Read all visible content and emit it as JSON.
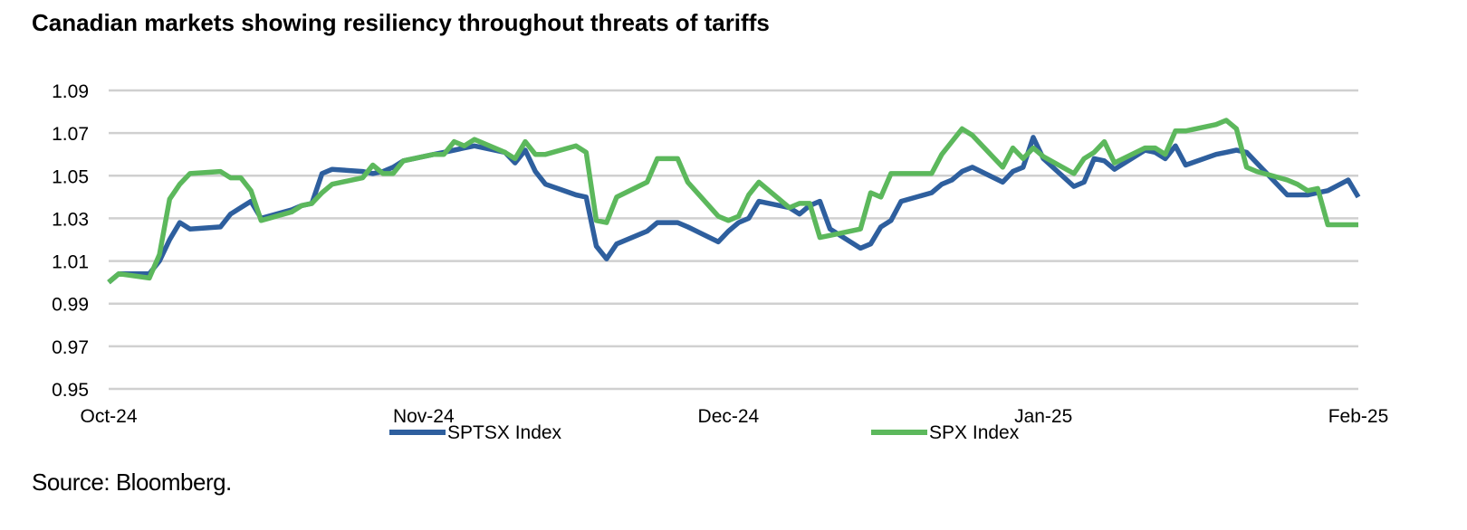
{
  "chart_data": {
    "type": "line",
    "title": "Canadian markets showing resiliency throughout threats of tariffs",
    "xlabel": "",
    "ylabel": "",
    "ylim": [
      0.95,
      1.09
    ],
    "yticks": [
      "1.09",
      "1.07",
      "1.05",
      "1.03",
      "1.01",
      "0.99",
      "0.97",
      "0.95"
    ],
    "ytick_values": [
      1.09,
      1.07,
      1.05,
      1.03,
      1.01,
      0.99,
      0.97,
      0.95
    ],
    "xlim": [
      0,
      123
    ],
    "xtick_labels": [
      "Oct-24",
      "Nov-24",
      "Dec-24",
      "Jan-25",
      "Feb-25"
    ],
    "xtick_values": [
      0,
      31,
      61,
      92,
      123
    ],
    "grid": true,
    "legend_position": "bottom",
    "x": [
      0,
      1,
      4,
      5,
      6,
      7,
      8,
      11,
      12,
      13,
      14,
      15,
      18,
      19,
      20,
      21,
      22,
      25,
      26,
      27,
      28,
      29,
      32,
      33,
      34,
      35,
      36,
      39,
      40,
      41,
      42,
      43,
      46,
      47,
      48,
      49,
      50,
      53,
      54,
      55,
      56,
      57,
      60,
      61,
      62,
      63,
      64,
      67,
      68,
      69,
      70,
      71,
      74,
      75,
      76,
      77,
      78,
      81,
      82,
      83,
      84,
      85,
      88,
      89,
      90,
      91,
      92,
      95,
      96,
      97,
      98,
      99,
      102,
      103,
      104,
      105,
      106,
      109,
      110,
      111,
      112,
      113,
      116,
      117,
      118,
      119,
      120,
      122,
      123
    ],
    "series": [
      {
        "name": "SPTSX Index",
        "color": "#2e5f9e",
        "values": [
          1.0,
          1.004,
          1.004,
          1.01,
          1.02,
          1.028,
          1.025,
          1.026,
          1.032,
          1.035,
          1.038,
          1.03,
          1.034,
          1.036,
          1.037,
          1.051,
          1.053,
          1.052,
          1.051,
          1.052,
          1.054,
          1.057,
          1.06,
          1.061,
          1.062,
          1.063,
          1.064,
          1.061,
          1.056,
          1.062,
          1.052,
          1.046,
          1.041,
          1.04,
          1.017,
          1.011,
          1.018,
          1.024,
          1.028,
          1.028,
          1.028,
          1.026,
          1.019,
          1.024,
          1.028,
          1.03,
          1.038,
          1.035,
          1.032,
          1.036,
          1.038,
          1.025,
          1.016,
          1.018,
          1.026,
          1.029,
          1.038,
          1.042,
          1.046,
          1.048,
          1.052,
          1.054,
          1.047,
          1.052,
          1.054,
          1.068,
          1.058,
          1.045,
          1.047,
          1.058,
          1.057,
          1.053,
          1.062,
          1.061,
          1.058,
          1.064,
          1.055,
          1.06,
          1.061,
          1.062,
          1.061,
          1.056,
          1.041,
          1.041,
          1.041,
          1.042,
          1.043,
          1.048,
          1.04
        ]
      },
      {
        "name": "SPX Index",
        "color": "#5cb85c",
        "values": [
          1.0,
          1.004,
          1.002,
          1.013,
          1.039,
          1.046,
          1.051,
          1.052,
          1.049,
          1.049,
          1.043,
          1.029,
          1.033,
          1.036,
          1.037,
          1.042,
          1.046,
          1.049,
          1.055,
          1.051,
          1.051,
          1.057,
          1.06,
          1.06,
          1.066,
          1.064,
          1.067,
          1.061,
          1.058,
          1.066,
          1.06,
          1.06,
          1.064,
          1.061,
          1.029,
          1.028,
          1.04,
          1.047,
          1.058,
          1.058,
          1.058,
          1.047,
          1.031,
          1.029,
          1.031,
          1.041,
          1.047,
          1.035,
          1.037,
          1.037,
          1.021,
          1.022,
          1.025,
          1.042,
          1.04,
          1.051,
          1.051,
          1.051,
          1.06,
          1.066,
          1.072,
          1.069,
          1.054,
          1.063,
          1.058,
          1.063,
          1.059,
          1.051,
          1.058,
          1.061,
          1.066,
          1.056,
          1.063,
          1.063,
          1.06,
          1.071,
          1.071,
          1.074,
          1.076,
          1.072,
          1.054,
          1.052,
          1.048,
          1.046,
          1.043,
          1.044,
          1.027,
          1.027,
          1.027
        ]
      }
    ]
  },
  "source_note": "Source: Bloomberg."
}
